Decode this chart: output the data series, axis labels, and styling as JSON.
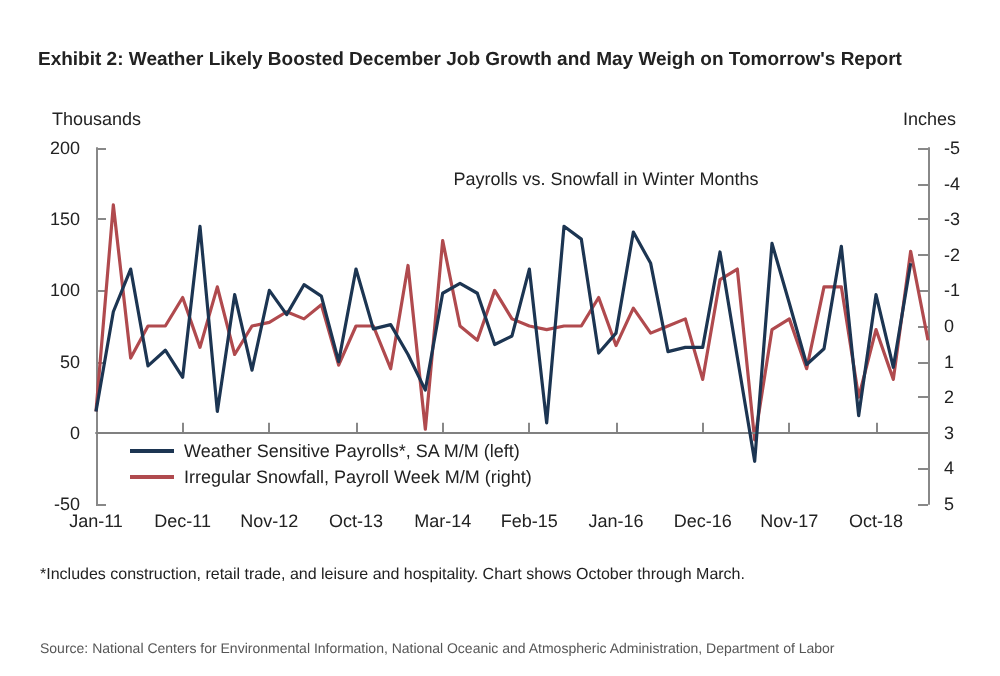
{
  "chart_data": {
    "type": "line",
    "title": "Exhibit 2: Weather Likely Boosted December Job Growth and May Weigh on Tomorrow's Report",
    "subtitle": "Payrolls vs. Snowfall in Winter Months",
    "ylabel": "Thousands",
    "y2label": "Inches",
    "categories": [
      "Jan-11",
      null,
      null,
      null,
      null,
      "Dec-11",
      null,
      null,
      null,
      null,
      "Nov-12",
      null,
      null,
      null,
      null,
      "Oct-13",
      null,
      null,
      null,
      null,
      "Mar-14",
      null,
      null,
      null,
      null,
      "Feb-15",
      null,
      null,
      null,
      null,
      "Jan-16",
      null,
      null,
      null,
      null,
      "Dec-16",
      null,
      null,
      null,
      null,
      "Nov-17",
      null,
      null,
      null,
      null,
      "Oct-18",
      null,
      null,
      null
    ],
    "series": [
      {
        "name": "Weather Sensitive Payrolls*, SA M/M (left)",
        "color": "#1c3552",
        "values": [
          15,
          85,
          115,
          47,
          58,
          39,
          145,
          15,
          97,
          44,
          100,
          83,
          104,
          96,
          50,
          115,
          73,
          76,
          55,
          30,
          98,
          105,
          98,
          62,
          68,
          115,
          7,
          145,
          136,
          56,
          70,
          141,
          119,
          57,
          60,
          60,
          127,
          53,
          -20,
          133,
          91,
          48,
          59,
          131,
          12,
          97,
          46,
          119,
          null
        ]
      },
      {
        "name": "Irregular Snowfall, Payroll Week M/M (right)",
        "color": "#b04a4e",
        "axis": "y2",
        "values": [
          2.4,
          -3.4,
          0.9,
          0,
          0,
          -0.8,
          0.6,
          -1.1,
          0.8,
          0,
          -0.1,
          -0.4,
          -0.2,
          -0.6,
          1.1,
          0,
          0,
          1.2,
          -1.7,
          2.9,
          -2.4,
          0,
          0.4,
          -1.0,
          -0.2,
          0,
          0.1,
          0,
          0,
          -0.8,
          0.55,
          -0.5,
          0.2,
          0,
          -0.2,
          1.5,
          -1.3,
          -1.6,
          3.2,
          0.1,
          -0.2,
          1.2,
          -1.1,
          -1.1,
          2.0,
          0.1,
          1.5,
          -2.1,
          0.4
        ]
      }
    ],
    "ylim": [
      -50,
      200
    ],
    "yticks": [
      -50,
      0,
      50,
      100,
      150,
      200
    ],
    "y2lim": [
      5,
      -5
    ],
    "y2ticks": [
      -5,
      -4,
      -3,
      -2,
      -1,
      0,
      1,
      2,
      3,
      4,
      5
    ],
    "ref_lines": [
      {
        "axis": "y",
        "value": 0,
        "color": "#808080"
      }
    ],
    "legend": "bottom left",
    "grid": false,
    "marker": "none",
    "line_style": "solid",
    "annotations": [
      "*Includes construction, retail trade, and leisure and hospitality. Chart shows October through March.",
      "Source: National Centers for Environmental Information, National Oceanic and Atmospheric Administration, Department of Labor"
    ]
  }
}
